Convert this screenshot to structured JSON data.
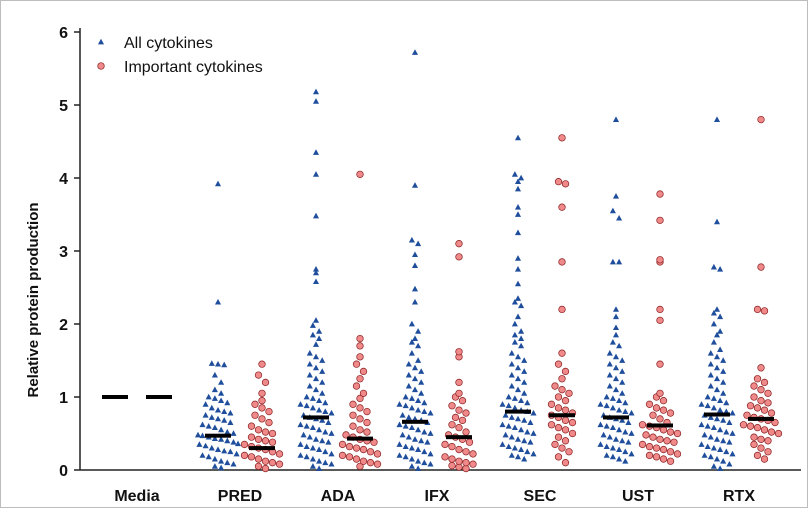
{
  "chart_data": {
    "type": "scatter",
    "ylabel": "Relative protein production",
    "xlabel": "",
    "ylim": [
      0,
      6
    ],
    "yticks": [
      0,
      1,
      2,
      3,
      4,
      5,
      6
    ],
    "categories": [
      "Media",
      "PRED",
      "ADA",
      "IFX",
      "SEC",
      "UST",
      "RTX"
    ],
    "legend_position": "top-left",
    "grid": false,
    "series": [
      {
        "name": "All cytokines",
        "marker": "triangle",
        "color": "#1f4e9c",
        "medians": [
          1.0,
          0.47,
          0.72,
          0.66,
          0.8,
          0.72,
          0.76
        ],
        "values": [
          [
            1.0
          ],
          [
            3.92,
            2.3,
            1.46,
            1.45,
            1.44,
            1.3,
            1.2,
            1.1,
            1.05,
            1.0,
            0.98,
            0.95,
            0.92,
            0.9,
            0.85,
            0.82,
            0.8,
            0.78,
            0.75,
            0.72,
            0.7,
            0.68,
            0.65,
            0.62,
            0.6,
            0.58,
            0.55,
            0.52,
            0.5,
            0.48,
            0.47,
            0.45,
            0.43,
            0.42,
            0.4,
            0.38,
            0.36,
            0.35,
            0.33,
            0.3,
            0.28,
            0.26,
            0.25,
            0.22,
            0.2,
            0.18,
            0.15,
            0.12,
            0.1,
            0.08,
            0.05,
            0.03
          ],
          [
            5.18,
            5.05,
            4.35,
            4.05,
            3.48,
            2.75,
            2.7,
            2.58,
            2.05,
            1.98,
            1.9,
            1.85,
            1.8,
            1.72,
            1.6,
            1.55,
            1.5,
            1.45,
            1.4,
            1.35,
            1.3,
            1.25,
            1.2,
            1.15,
            1.1,
            1.05,
            1.0,
            0.98,
            0.95,
            0.92,
            0.9,
            0.88,
            0.85,
            0.82,
            0.8,
            0.78,
            0.75,
            0.72,
            0.7,
            0.68,
            0.65,
            0.62,
            0.6,
            0.58,
            0.55,
            0.52,
            0.5,
            0.48,
            0.45,
            0.42,
            0.4,
            0.38,
            0.35,
            0.32,
            0.3,
            0.28,
            0.25,
            0.22,
            0.2,
            0.18,
            0.15,
            0.12,
            0.1,
            0.08,
            0.05,
            0.02
          ],
          [
            5.72,
            3.9,
            3.15,
            3.1,
            2.95,
            2.8,
            2.48,
            2.3,
            2.0,
            1.9,
            1.8,
            1.75,
            1.7,
            1.6,
            1.5,
            1.45,
            1.4,
            1.35,
            1.3,
            1.25,
            1.2,
            1.15,
            1.1,
            1.05,
            1.0,
            0.98,
            0.95,
            0.92,
            0.9,
            0.88,
            0.85,
            0.82,
            0.8,
            0.78,
            0.75,
            0.72,
            0.7,
            0.68,
            0.65,
            0.62,
            0.6,
            0.58,
            0.55,
            0.52,
            0.5,
            0.48,
            0.45,
            0.42,
            0.4,
            0.38,
            0.35,
            0.32,
            0.3,
            0.28,
            0.25,
            0.22,
            0.2,
            0.18,
            0.15,
            0.12,
            0.1,
            0.08,
            0.05,
            0.02
          ],
          [
            4.55,
            4.05,
            4.0,
            3.95,
            3.85,
            3.6,
            3.5,
            3.25,
            2.9,
            2.75,
            2.55,
            2.35,
            2.3,
            2.25,
            2.1,
            2.0,
            1.9,
            1.85,
            1.8,
            1.75,
            1.7,
            1.6,
            1.55,
            1.5,
            1.45,
            1.4,
            1.35,
            1.3,
            1.25,
            1.2,
            1.15,
            1.1,
            1.05,
            1.0,
            0.98,
            0.95,
            0.92,
            0.9,
            0.88,
            0.85,
            0.82,
            0.8,
            0.78,
            0.75,
            0.72,
            0.7,
            0.68,
            0.65,
            0.62,
            0.6,
            0.58,
            0.55,
            0.52,
            0.5,
            0.48,
            0.45,
            0.42,
            0.4,
            0.38,
            0.35,
            0.32,
            0.3,
            0.28,
            0.25,
            0.22,
            0.2,
            0.18,
            0.15
          ],
          [
            4.8,
            3.75,
            3.55,
            3.45,
            2.85,
            2.85,
            2.2,
            2.1,
            1.95,
            1.85,
            1.75,
            1.7,
            1.6,
            1.55,
            1.5,
            1.45,
            1.4,
            1.35,
            1.3,
            1.25,
            1.2,
            1.15,
            1.1,
            1.05,
            1.0,
            0.98,
            0.95,
            0.92,
            0.9,
            0.88,
            0.85,
            0.82,
            0.8,
            0.78,
            0.75,
            0.72,
            0.7,
            0.68,
            0.65,
            0.62,
            0.6,
            0.58,
            0.55,
            0.52,
            0.5,
            0.48,
            0.45,
            0.42,
            0.4,
            0.38,
            0.35,
            0.32,
            0.3,
            0.28,
            0.25,
            0.22,
            0.2,
            0.18,
            0.15,
            0.12
          ],
          [
            4.8,
            3.4,
            2.78,
            2.75,
            2.2,
            2.15,
            2.1,
            2.0,
            1.9,
            1.85,
            1.75,
            1.65,
            1.6,
            1.55,
            1.5,
            1.45,
            1.4,
            1.35,
            1.3,
            1.25,
            1.2,
            1.15,
            1.1,
            1.05,
            1.0,
            0.98,
            0.95,
            0.92,
            0.9,
            0.88,
            0.85,
            0.82,
            0.8,
            0.78,
            0.75,
            0.72,
            0.7,
            0.68,
            0.65,
            0.62,
            0.6,
            0.58,
            0.55,
            0.52,
            0.5,
            0.48,
            0.45,
            0.42,
            0.4,
            0.38,
            0.35,
            0.32,
            0.3,
            0.28,
            0.25,
            0.22,
            0.2,
            0.18,
            0.15,
            0.12,
            0.08,
            0.05,
            0.02
          ]
        ]
      },
      {
        "name": "Important cytokines",
        "marker": "circle",
        "color": "#f08a8a",
        "medians": [
          1.0,
          0.3,
          0.43,
          0.45,
          0.75,
          0.61,
          0.7
        ],
        "values": [
          [
            1.0
          ],
          [
            1.45,
            1.3,
            1.2,
            1.05,
            0.95,
            0.9,
            0.85,
            0.8,
            0.75,
            0.7,
            0.65,
            0.6,
            0.55,
            0.52,
            0.5,
            0.45,
            0.42,
            0.4,
            0.38,
            0.35,
            0.32,
            0.3,
            0.28,
            0.25,
            0.22,
            0.2,
            0.18,
            0.15,
            0.12,
            0.1,
            0.08,
            0.05,
            0.02
          ],
          [
            4.05,
            1.8,
            1.7,
            1.55,
            1.45,
            1.35,
            1.25,
            1.15,
            1.05,
            0.98,
            0.9,
            0.85,
            0.8,
            0.75,
            0.7,
            0.65,
            0.6,
            0.55,
            0.52,
            0.48,
            0.45,
            0.42,
            0.4,
            0.38,
            0.35,
            0.32,
            0.3,
            0.28,
            0.25,
            0.22,
            0.2,
            0.18,
            0.15,
            0.12,
            0.1,
            0.08,
            0.05
          ],
          [
            3.1,
            2.92,
            1.62,
            1.55,
            1.2,
            1.05,
            1.0,
            0.95,
            0.88,
            0.82,
            0.78,
            0.72,
            0.68,
            0.62,
            0.58,
            0.52,
            0.48,
            0.45,
            0.42,
            0.38,
            0.35,
            0.32,
            0.28,
            0.25,
            0.22,
            0.18,
            0.15,
            0.12,
            0.1,
            0.08,
            0.06,
            0.04,
            0.02
          ],
          [
            4.55,
            3.95,
            3.92,
            3.6,
            2.85,
            2.2,
            1.6,
            1.45,
            1.35,
            1.25,
            1.15,
            1.1,
            1.05,
            1.0,
            0.95,
            0.9,
            0.85,
            0.82,
            0.78,
            0.75,
            0.72,
            0.68,
            0.65,
            0.62,
            0.58,
            0.55,
            0.5,
            0.45,
            0.4,
            0.35,
            0.3,
            0.25,
            0.18,
            0.1
          ],
          [
            3.78,
            3.42,
            2.88,
            2.85,
            2.2,
            2.05,
            1.45,
            1.05,
            1.0,
            0.95,
            0.9,
            0.85,
            0.82,
            0.78,
            0.75,
            0.7,
            0.65,
            0.62,
            0.6,
            0.58,
            0.55,
            0.52,
            0.5,
            0.48,
            0.45,
            0.42,
            0.4,
            0.38,
            0.35,
            0.32,
            0.3,
            0.28,
            0.25,
            0.22,
            0.2,
            0.18,
            0.15,
            0.12
          ],
          [
            4.8,
            2.78,
            2.2,
            2.18,
            1.4,
            1.25,
            1.2,
            1.15,
            1.1,
            1.05,
            1.0,
            0.95,
            0.92,
            0.88,
            0.85,
            0.82,
            0.78,
            0.75,
            0.72,
            0.7,
            0.68,
            0.65,
            0.62,
            0.6,
            0.58,
            0.55,
            0.52,
            0.5,
            0.45,
            0.42,
            0.4,
            0.35,
            0.3,
            0.25,
            0.2,
            0.15
          ]
        ]
      }
    ]
  }
}
